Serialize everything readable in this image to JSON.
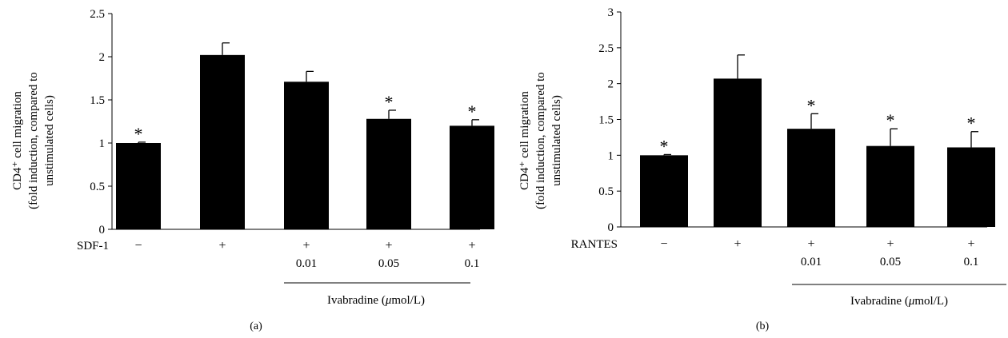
{
  "chart_data": [
    {
      "type": "bar",
      "panel_label": "(a)",
      "ylabel_lines": [
        "CD4⁺ cell migration",
        "(fold induction, compared to",
        "unstimulated cells)"
      ],
      "yticks": [
        "0",
        "0.5",
        "1",
        "1.5",
        "2",
        "2.5"
      ],
      "ylim": [
        0,
        2.5
      ],
      "stimulus_label": "SDF-1",
      "categories": [
        {
          "sign": "−",
          "dose": ""
        },
        {
          "sign": "+",
          "dose": ""
        },
        {
          "sign": "+",
          "dose": "0.01"
        },
        {
          "sign": "+",
          "dose": "0.05"
        },
        {
          "sign": "+",
          "dose": "0.1"
        }
      ],
      "values": [
        1.0,
        2.02,
        1.71,
        1.28,
        1.2
      ],
      "errors": [
        0.01,
        0.14,
        0.12,
        0.1,
        0.07
      ],
      "significance": [
        "*",
        "",
        "",
        "*",
        "*"
      ],
      "group_label_text": "Ivabradine (",
      "group_label_unit_symbol": "μ",
      "group_label_unit_rest": "mol/L)"
    },
    {
      "type": "bar",
      "panel_label": "(b)",
      "ylabel_lines": [
        "CD4⁺ cell migration",
        "(fold induction, compared to",
        "unstimulated cells)"
      ],
      "yticks": [
        "0",
        "0.5",
        "1",
        "1.5",
        "2",
        "2.5",
        "3"
      ],
      "ylim": [
        0,
        3
      ],
      "stimulus_label": "RANTES",
      "categories": [
        {
          "sign": "−",
          "dose": ""
        },
        {
          "sign": "+",
          "dose": ""
        },
        {
          "sign": "+",
          "dose": "0.01"
        },
        {
          "sign": "+",
          "dose": "0.05"
        },
        {
          "sign": "+",
          "dose": "0.1"
        }
      ],
      "values": [
        1.0,
        2.07,
        1.37,
        1.13,
        1.11
      ],
      "errors": [
        0.01,
        0.33,
        0.21,
        0.24,
        0.22
      ],
      "significance": [
        "*",
        "",
        "*",
        "*",
        "*"
      ],
      "group_label_text": "Ivabradine (",
      "group_label_unit_symbol": "μ",
      "group_label_unit_rest": "mol/L)"
    }
  ]
}
